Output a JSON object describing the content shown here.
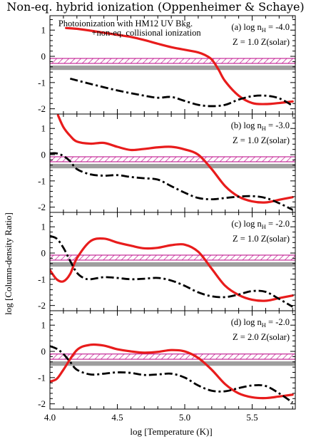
{
  "title": "Non-eq. hybrid ionization (Oppenheimer & Schaye)",
  "colors": {
    "photo": "#e81c1c",
    "collisional": "#000000",
    "hatch": "#c0188f",
    "band": "#9e9e9e"
  },
  "chart_data": {
    "type": "line",
    "xlabel": "log [Temperature (K)]",
    "ylabel": "log [Column-density Ratio]",
    "xlim": [
      4.0,
      5.82
    ],
    "xticks": [
      "4.0",
      "4.5",
      "5.0",
      "5.5"
    ],
    "xtick_values": [
      4.0,
      4.5,
      5.0,
      5.5
    ],
    "legend_text_1": "Photoionization with HM12 UV Bkg.",
    "legend_text_2": "+non-eq. collisional ionization",
    "panels": [
      {
        "label_line1": "(a) log n",
        "label_sub": "H",
        "label_line1_end": " = -4.0",
        "label_line2": "Z = 1.0 Z(solar)",
        "ylim": [
          -2.2,
          1.55
        ],
        "yticks": [
          "1",
          "0",
          "-1",
          "-2"
        ],
        "ytick_values": [
          1,
          0,
          -1,
          -2
        ],
        "hatch_band": [
          -0.27,
          -0.08
        ],
        "gray_band": [
          -0.52,
          -0.35
        ],
        "series": [
          {
            "style": "photo",
            "x": [
              4.12,
              4.2,
              4.3,
              4.4,
              4.5,
              4.6,
              4.7,
              4.8,
              4.9,
              5.0,
              5.1,
              5.15,
              5.2,
              5.25,
              5.3,
              5.4,
              5.5,
              5.6,
              5.7,
              5.8
            ],
            "y": [
              1.08,
              1.05,
              0.98,
              0.9,
              0.82,
              0.74,
              0.62,
              0.48,
              0.35,
              0.25,
              0.15,
              0.05,
              -0.12,
              -0.5,
              -0.95,
              -1.5,
              -1.78,
              -1.82,
              -1.78,
              -1.72
            ]
          },
          {
            "style": "collisional",
            "x": [
              4.15,
              4.3,
              4.5,
              4.7,
              4.8,
              4.9,
              5.0,
              5.1,
              5.2,
              5.3,
              5.4,
              5.5,
              5.6,
              5.7,
              5.8
            ],
            "y": [
              -0.85,
              -1.05,
              -1.3,
              -1.5,
              -1.58,
              -1.55,
              -1.7,
              -1.85,
              -1.9,
              -1.85,
              -1.65,
              -1.52,
              -1.5,
              -1.6,
              -1.88
            ]
          }
        ]
      },
      {
        "label_line1": "(b) log n",
        "label_sub": "H",
        "label_line1_end": " = -3.0",
        "label_line2": "Z = 1.0 Z(solar)",
        "ylim": [
          -2.2,
          1.55
        ],
        "yticks": [
          "1",
          "0",
          "-1",
          "-2"
        ],
        "ytick_values": [
          1,
          0,
          -1,
          -2
        ],
        "hatch_band": [
          -0.27,
          -0.08
        ],
        "gray_band": [
          -0.52,
          -0.35
        ],
        "series": [
          {
            "style": "photo",
            "x": [
              4.06,
              4.1,
              4.15,
              4.2,
              4.3,
              4.4,
              4.5,
              4.6,
              4.7,
              4.8,
              4.9,
              5.0,
              5.1,
              5.2,
              5.3,
              5.4,
              5.5,
              5.6,
              5.7,
              5.8
            ],
            "y": [
              1.5,
              1.05,
              0.72,
              0.5,
              0.42,
              0.45,
              0.3,
              0.18,
              0.22,
              0.28,
              0.3,
              0.2,
              0.0,
              -0.55,
              -1.2,
              -1.6,
              -1.78,
              -1.82,
              -1.72,
              -1.62
            ]
          },
          {
            "style": "collisional",
            "x": [
              4.0,
              4.05,
              4.1,
              4.15,
              4.2,
              4.3,
              4.4,
              4.5,
              4.6,
              4.7,
              4.8,
              4.9,
              5.0,
              5.1,
              5.2,
              5.3,
              5.4,
              5.5,
              5.6,
              5.7,
              5.8
            ],
            "y": [
              0.05,
              0.05,
              -0.05,
              -0.25,
              -0.55,
              -0.75,
              -0.8,
              -0.78,
              -0.85,
              -0.9,
              -0.95,
              -1.2,
              -1.45,
              -1.65,
              -1.7,
              -1.65,
              -1.6,
              -1.58,
              -1.65,
              -1.85,
              -2.1
            ]
          }
        ]
      },
      {
        "label_line1": "(c) log n",
        "label_sub": "H",
        "label_line1_end": " = -2.0",
        "label_line2": "Z = 1.0 Z(solar)",
        "ylim": [
          -2.2,
          1.55
        ],
        "yticks": [
          "1",
          "0",
          "-1",
          "-2"
        ],
        "ytick_values": [
          1,
          0,
          -1,
          -2
        ],
        "hatch_band": [
          -0.27,
          -0.08
        ],
        "gray_band": [
          -0.52,
          -0.35
        ],
        "series": [
          {
            "style": "photo",
            "x": [
              4.0,
              4.05,
              4.1,
              4.15,
              4.2,
              4.3,
              4.4,
              4.5,
              4.6,
              4.7,
              4.8,
              4.9,
              5.0,
              5.1,
              5.2,
              5.3,
              5.4,
              5.5,
              5.6,
              5.7,
              5.8
            ],
            "y": [
              -0.65,
              -1.0,
              -1.08,
              -0.8,
              -0.2,
              0.45,
              0.55,
              0.4,
              0.28,
              0.18,
              0.2,
              0.3,
              0.32,
              0.05,
              -0.6,
              -1.25,
              -1.6,
              -1.78,
              -1.82,
              -1.72,
              -1.62
            ]
          },
          {
            "style": "collisional",
            "x": [
              4.0,
              4.05,
              4.1,
              4.15,
              4.2,
              4.25,
              4.3,
              4.4,
              4.5,
              4.6,
              4.7,
              4.8,
              4.9,
              5.0,
              5.1,
              5.2,
              5.3,
              5.4,
              5.5,
              5.6,
              5.7,
              5.8
            ],
            "y": [
              0.65,
              0.55,
              0.2,
              -0.3,
              -0.75,
              -0.95,
              -1.0,
              -0.92,
              -0.95,
              -1.0,
              -0.98,
              -0.95,
              -1.05,
              -1.25,
              -1.5,
              -1.65,
              -1.68,
              -1.58,
              -1.45,
              -1.48,
              -1.75,
              -2.05
            ]
          }
        ]
      },
      {
        "label_line1": "(d) log n",
        "label_sub": "H",
        "label_line1_end": " = -2.0",
        "label_line2": "Z = 2.0 Z(solar)",
        "ylim": [
          -2.2,
          1.55
        ],
        "yticks": [
          "1",
          "0",
          "-1",
          "-2"
        ],
        "ytick_values": [
          1,
          0,
          -1,
          -2
        ],
        "hatch_band": [
          -0.3,
          -0.1
        ],
        "gray_band": [
          -0.55,
          -0.38
        ],
        "series": [
          {
            "style": "photo",
            "x": [
              4.0,
              4.05,
              4.1,
              4.2,
              4.3,
              4.4,
              4.5,
              4.6,
              4.7,
              4.8,
              4.9,
              5.0,
              5.1,
              5.2,
              5.3,
              5.4,
              5.5,
              5.6,
              5.7,
              5.8
            ],
            "y": [
              -1.15,
              -1.05,
              -0.7,
              0.05,
              0.25,
              0.22,
              0.08,
              0.0,
              -0.05,
              -0.02,
              0.05,
              0.0,
              -0.25,
              -0.7,
              -1.25,
              -1.6,
              -1.75,
              -1.78,
              -1.72,
              -1.65
            ]
          },
          {
            "style": "collisional",
            "x": [
              4.0,
              4.05,
              4.1,
              4.15,
              4.2,
              4.3,
              4.4,
              4.5,
              4.6,
              4.7,
              4.8,
              4.9,
              5.0,
              5.1,
              5.2,
              5.3,
              5.4,
              5.5,
              5.6,
              5.7,
              5.8
            ],
            "y": [
              0.2,
              0.1,
              -0.1,
              -0.4,
              -0.7,
              -0.88,
              -0.85,
              -0.8,
              -0.82,
              -0.9,
              -0.88,
              -0.85,
              -1.0,
              -1.3,
              -1.5,
              -1.52,
              -1.4,
              -1.3,
              -1.32,
              -1.6,
              -1.95
            ]
          }
        ]
      }
    ]
  }
}
